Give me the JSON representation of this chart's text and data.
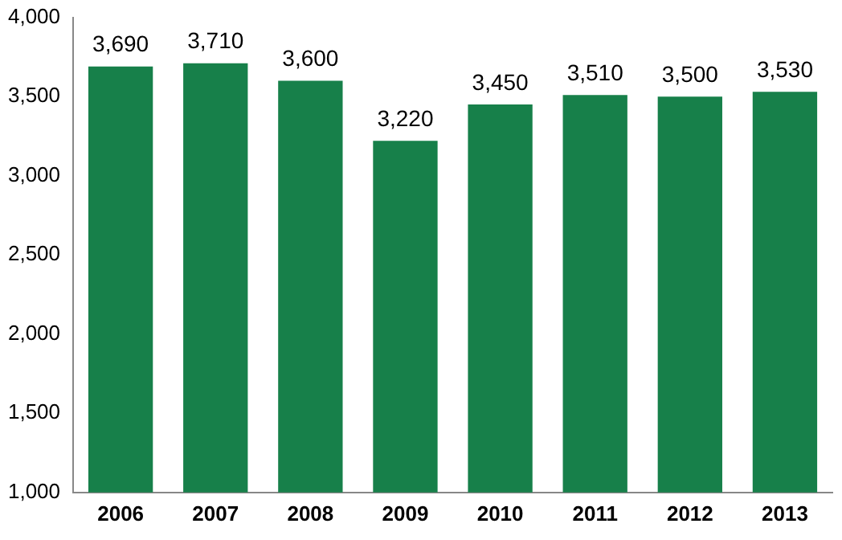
{
  "chart_data": {
    "type": "bar",
    "categories": [
      "2006",
      "2007",
      "2008",
      "2009",
      "2010",
      "2011",
      "2012",
      "2013"
    ],
    "values": [
      3690,
      3710,
      3600,
      3220,
      3450,
      3510,
      3500,
      3530
    ],
    "color": "#17804a",
    "ylim": [
      1000,
      4000
    ],
    "yticks": [
      {
        "value": 1000,
        "label": "1,000"
      },
      {
        "value": 1500,
        "label": "1,500"
      },
      {
        "value": 2000,
        "label": "2,000"
      },
      {
        "value": 2500,
        "label": "2,500"
      },
      {
        "value": 3000,
        "label": "3,000"
      },
      {
        "value": 3500,
        "label": "3,500"
      },
      {
        "value": 4000,
        "label": "4,000"
      }
    ],
    "value_labels": [
      "3,690",
      "3,710",
      "3,600",
      "3,220",
      "3,450",
      "3,510",
      "3,500",
      "3,530"
    ],
    "grid": false,
    "legend": false
  }
}
